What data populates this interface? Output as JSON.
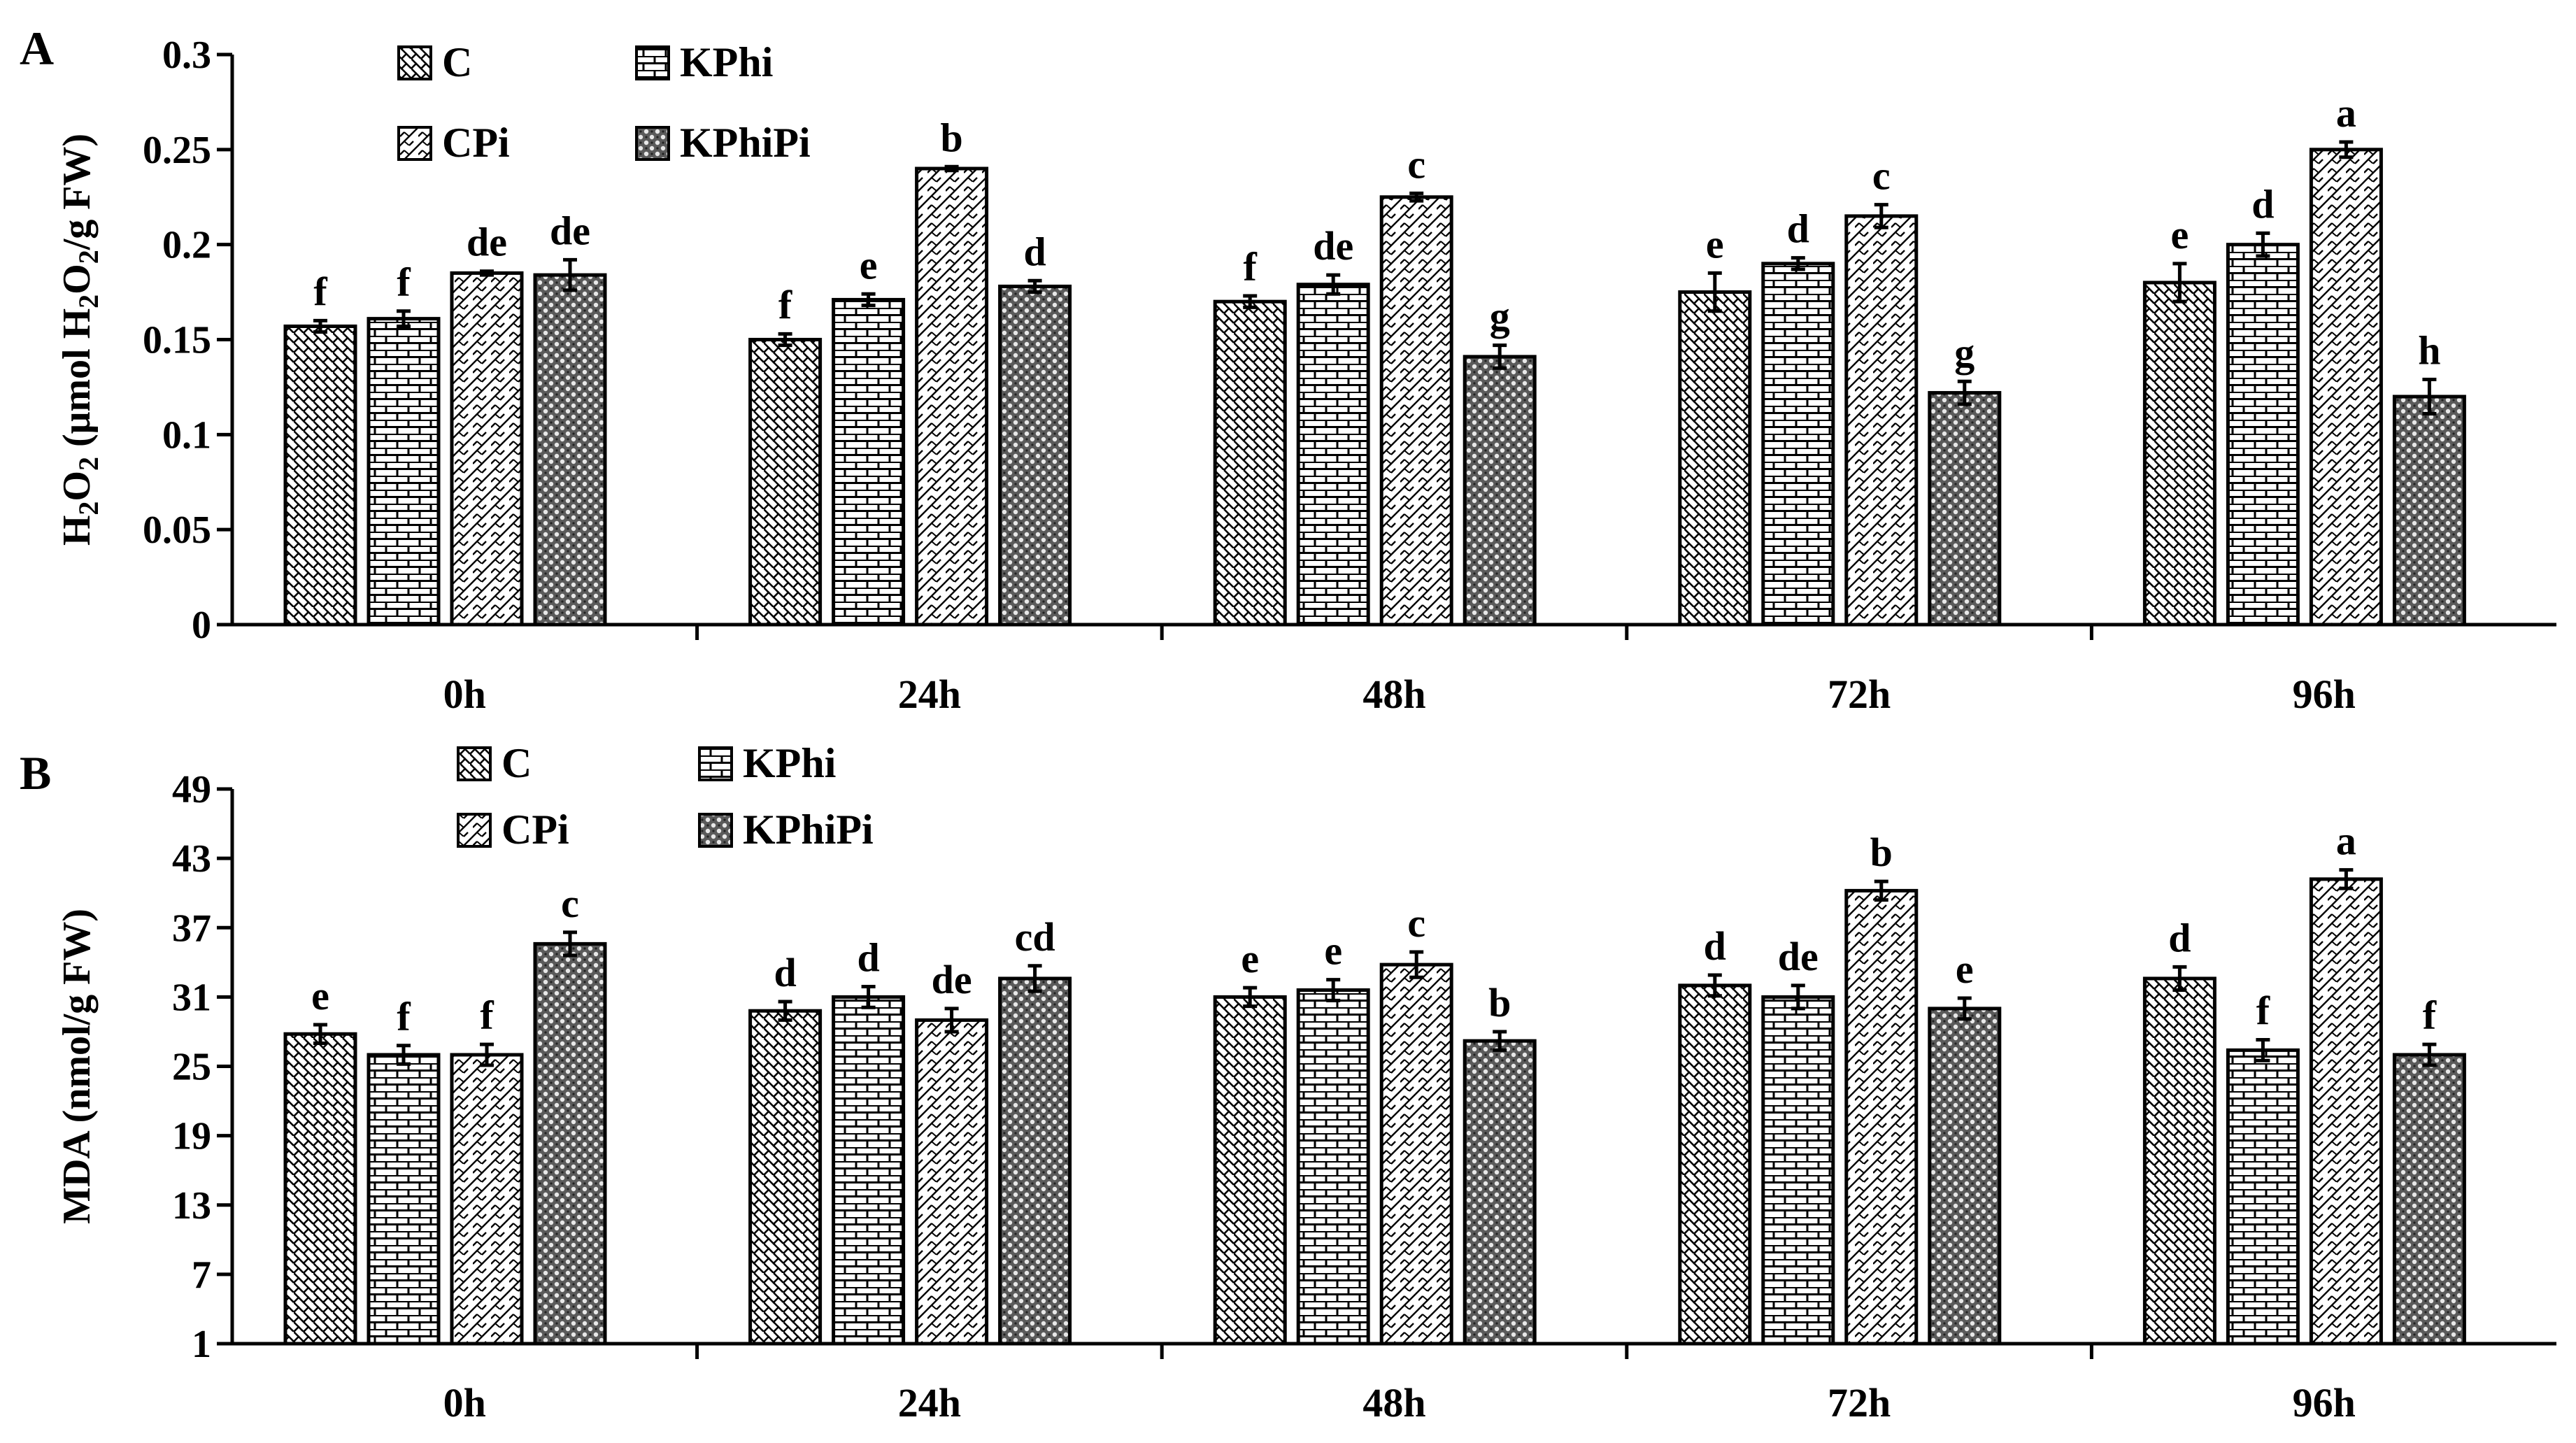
{
  "chart_data": [
    {
      "type": "bar",
      "panel": "A",
      "title": "",
      "xlabel": "",
      "ylabel": "H2O2 (μmol H2O2/g FW)",
      "ylabel_parts": {
        "a": "H",
        "b": "2",
        "c": "O",
        "d": "2",
        "e": " (μmol H",
        "f": "2",
        "g": "O",
        "h": "2",
        "i": "/g FW)"
      },
      "ylim": [
        0,
        0.3
      ],
      "yticks": [
        "0",
        "0.05",
        "0.1",
        "0.15",
        "0.2",
        "0.25",
        "0.3"
      ],
      "ytick_values": [
        0,
        0.05,
        0.1,
        0.15,
        0.2,
        0.25,
        0.3
      ],
      "categories": [
        "0h",
        "24h",
        "48h",
        "72h",
        "96h"
      ],
      "legend": [
        "C",
        "KPhi",
        "CPi",
        "KPhiPi"
      ],
      "series": [
        {
          "name": "C",
          "pattern": "C",
          "values": [
            0.157,
            0.15,
            0.17,
            0.175,
            0.18
          ],
          "errors": [
            0.003,
            0.003,
            0.003,
            0.01,
            0.01
          ],
          "letters": [
            "f",
            "f",
            "f",
            "e",
            "e"
          ]
        },
        {
          "name": "KPhi",
          "pattern": "KPhi",
          "values": [
            0.161,
            0.171,
            0.179,
            0.19,
            0.2
          ],
          "errors": [
            0.004,
            0.003,
            0.005,
            0.003,
            0.006
          ],
          "letters": [
            "f",
            "e",
            "de",
            "d",
            "d"
          ]
        },
        {
          "name": "CPi",
          "pattern": "CPi",
          "values": [
            0.185,
            0.24,
            0.225,
            0.215,
            0.25
          ],
          "errors": [
            0.001,
            0.001,
            0.002,
            0.006,
            0.004
          ],
          "letters": [
            "de",
            "b",
            "c",
            "c",
            "a"
          ]
        },
        {
          "name": "KPhiPi",
          "pattern": "KPhiPi",
          "values": [
            0.184,
            0.178,
            0.141,
            0.122,
            0.12
          ],
          "errors": [
            0.008,
            0.003,
            0.006,
            0.006,
            0.009
          ],
          "letters": [
            "de",
            "d",
            "g",
            "g",
            "h"
          ]
        }
      ]
    },
    {
      "type": "bar",
      "panel": "B",
      "title": "",
      "xlabel": "",
      "ylabel": "MDA (nmol/g FW)",
      "ylim": [
        1,
        49
      ],
      "yticks": [
        "1",
        "7",
        "13",
        "19",
        "25",
        "31",
        "37",
        "43",
        "49"
      ],
      "ytick_values": [
        1,
        7,
        13,
        19,
        25,
        31,
        37,
        43,
        49
      ],
      "categories": [
        "0h",
        "24h",
        "48h",
        "72h",
        "96h"
      ],
      "legend": [
        "C",
        "KPhi",
        "CPi",
        "KPhiPi"
      ],
      "series": [
        {
          "name": "C",
          "pattern": "C",
          "values": [
            27.8,
            29.8,
            31.0,
            32.0,
            32.6
          ],
          "errors": [
            0.8,
            0.8,
            0.8,
            0.9,
            1.0
          ],
          "letters": [
            "e",
            "d",
            "e",
            "d",
            "d"
          ]
        },
        {
          "name": "KPhi",
          "pattern": "KPhi",
          "values": [
            26.0,
            31.0,
            31.6,
            31.0,
            26.4
          ],
          "errors": [
            0.8,
            0.9,
            0.9,
            1.0,
            0.9
          ],
          "letters": [
            "f",
            "d",
            "e",
            "de",
            "f"
          ]
        },
        {
          "name": "CPi",
          "pattern": "CPi",
          "values": [
            26.0,
            29.0,
            33.8,
            40.2,
            41.2
          ],
          "errors": [
            0.9,
            1.0,
            1.1,
            0.8,
            0.8
          ],
          "letters": [
            "f",
            "de",
            "c",
            "b",
            "a"
          ]
        },
        {
          "name": "KPhiPi",
          "pattern": "KPhiPi",
          "values": [
            35.6,
            32.6,
            27.2,
            30.0,
            26.0
          ],
          "errors": [
            1.0,
            1.1,
            0.8,
            0.9,
            0.9
          ],
          "letters": [
            "c",
            "cd",
            "b",
            "e",
            "f"
          ]
        }
      ]
    }
  ]
}
